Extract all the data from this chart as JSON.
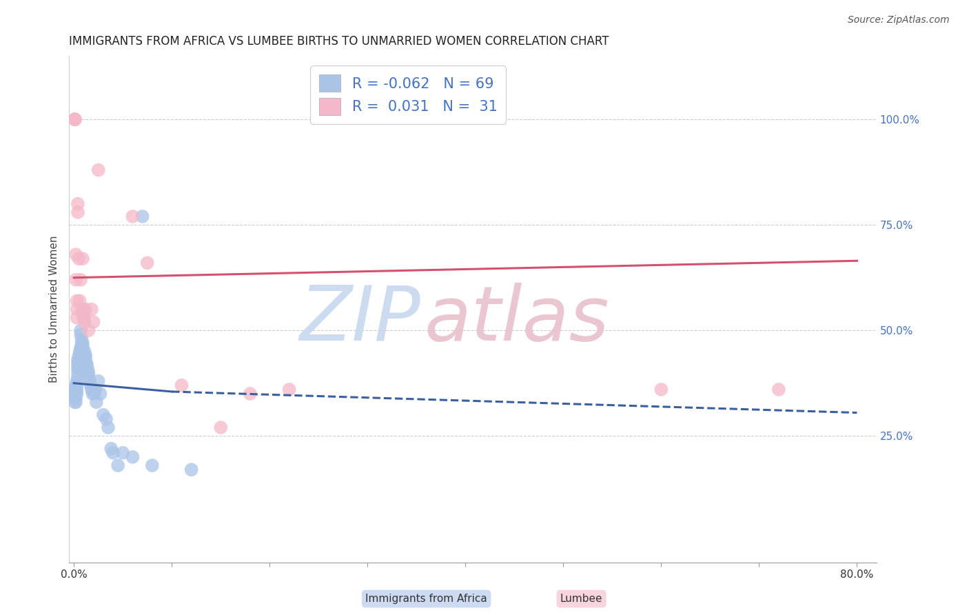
{
  "title": "IMMIGRANTS FROM AFRICA VS LUMBEE BIRTHS TO UNMARRIED WOMEN CORRELATION CHART",
  "source": "Source: ZipAtlas.com",
  "ylabel": "Births to Unmarried Women",
  "xlim": [
    -0.005,
    0.82
  ],
  "ylim": [
    -0.05,
    1.15
  ],
  "yticks_right": [
    0.25,
    0.5,
    0.75,
    1.0
  ],
  "ytick_right_labels": [
    "25.0%",
    "50.0%",
    "75.0%",
    "100.0%"
  ],
  "legend_blue_r": "-0.062",
  "legend_blue_n": "69",
  "legend_pink_r": "0.031",
  "legend_pink_n": "31",
  "blue_color": "#aac4e8",
  "pink_color": "#f4b8c8",
  "trendline_blue_color": "#3a5fa0",
  "trendline_pink_color": "#d45070",
  "watermark": "ZIPatlas",
  "watermark_blue": "#c8d8ef",
  "watermark_pink": "#e8c0cc",
  "blue_scatter_x": [
    0.001,
    0.001,
    0.001,
    0.001,
    0.002,
    0.002,
    0.002,
    0.002,
    0.002,
    0.003,
    0.003,
    0.003,
    0.003,
    0.004,
    0.004,
    0.004,
    0.004,
    0.004,
    0.005,
    0.005,
    0.005,
    0.005,
    0.006,
    0.006,
    0.006,
    0.006,
    0.007,
    0.007,
    0.007,
    0.007,
    0.008,
    0.008,
    0.008,
    0.009,
    0.009,
    0.01,
    0.01,
    0.01,
    0.011,
    0.011,
    0.012,
    0.012,
    0.013,
    0.013,
    0.014,
    0.014,
    0.015,
    0.015,
    0.016,
    0.017,
    0.018,
    0.019,
    0.02,
    0.021,
    0.022,
    0.023,
    0.025,
    0.027,
    0.03,
    0.033,
    0.035,
    0.038,
    0.04,
    0.045,
    0.05,
    0.06,
    0.07,
    0.08,
    0.12
  ],
  "blue_scatter_y": [
    0.36,
    0.35,
    0.34,
    0.33,
    0.37,
    0.36,
    0.35,
    0.34,
    0.33,
    0.38,
    0.37,
    0.36,
    0.35,
    0.43,
    0.42,
    0.41,
    0.4,
    0.39,
    0.44,
    0.43,
    0.42,
    0.41,
    0.45,
    0.44,
    0.43,
    0.42,
    0.46,
    0.45,
    0.5,
    0.49,
    0.48,
    0.47,
    0.46,
    0.47,
    0.46,
    0.55,
    0.54,
    0.53,
    0.45,
    0.44,
    0.44,
    0.43,
    0.42,
    0.42,
    0.41,
    0.4,
    0.4,
    0.39,
    0.38,
    0.37,
    0.36,
    0.35,
    0.36,
    0.35,
    0.36,
    0.33,
    0.38,
    0.35,
    0.3,
    0.29,
    0.27,
    0.22,
    0.21,
    0.18,
    0.21,
    0.2,
    0.77,
    0.18,
    0.17
  ],
  "pink_scatter_x": [
    0.001,
    0.001,
    0.001,
    0.001,
    0.002,
    0.002,
    0.003,
    0.003,
    0.003,
    0.004,
    0.004,
    0.005,
    0.006,
    0.007,
    0.008,
    0.009,
    0.01,
    0.011,
    0.012,
    0.015,
    0.018,
    0.02,
    0.025,
    0.06,
    0.075,
    0.11,
    0.15,
    0.18,
    0.22,
    0.6,
    0.72
  ],
  "pink_scatter_y": [
    1.0,
    1.0,
    1.0,
    1.0,
    0.68,
    0.62,
    0.57,
    0.55,
    0.53,
    0.8,
    0.78,
    0.67,
    0.57,
    0.62,
    0.55,
    0.67,
    0.53,
    0.52,
    0.55,
    0.5,
    0.55,
    0.52,
    0.88,
    0.77,
    0.66,
    0.37,
    0.27,
    0.35,
    0.36,
    0.36,
    0.36
  ],
  "blue_trend_x0": 0.0,
  "blue_trend_x_split": 0.1,
  "blue_trend_x1": 0.8,
  "blue_trend_y0": 0.375,
  "blue_trend_y_split": 0.355,
  "blue_trend_y1": 0.305,
  "pink_trend_x0": 0.0,
  "pink_trend_x1": 0.8,
  "pink_trend_y0": 0.625,
  "pink_trend_y1": 0.665,
  "background_color": "#ffffff",
  "grid_color": "#cccccc",
  "title_color": "#222222",
  "source_color": "#555555",
  "label_color": "#4472c4",
  "bottom_label1": "Immigrants from Africa",
  "bottom_label2": "Lumbee"
}
